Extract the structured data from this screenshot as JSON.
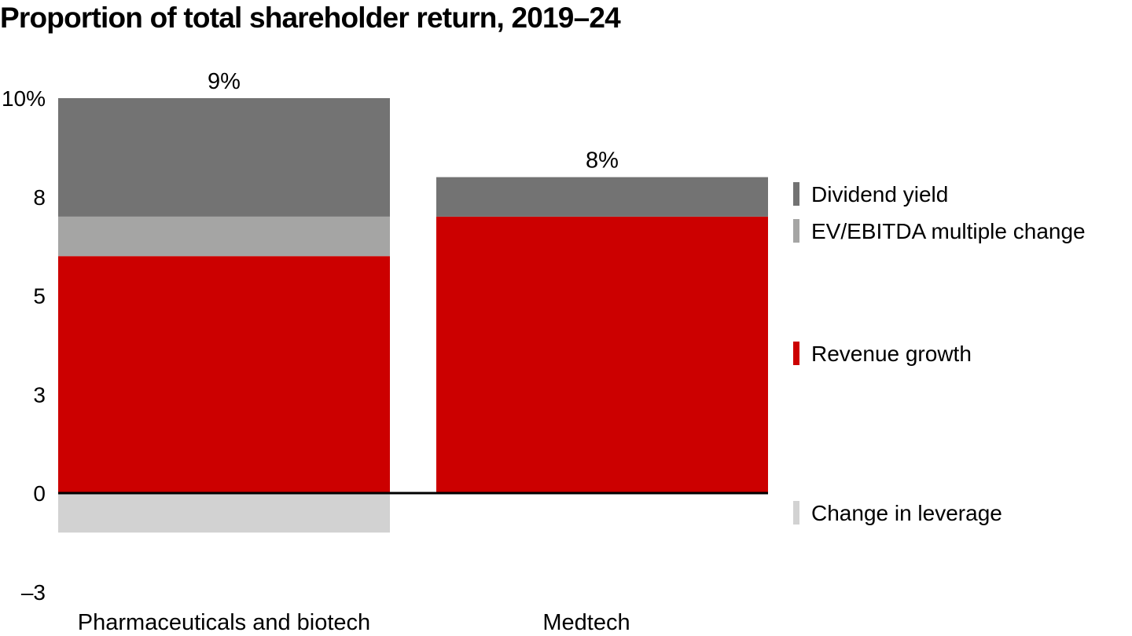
{
  "chart_data": {
    "type": "bar",
    "stacked": true,
    "title": "Proportion of total shareholder return, 2019–24",
    "xlabel": "",
    "ylabel": "",
    "ylim": [
      -3,
      10
    ],
    "y_ticks": [
      {
        "value": 10,
        "label": "10%"
      },
      {
        "value": 7.5,
        "label": "8"
      },
      {
        "value": 5,
        "label": "5"
      },
      {
        "value": 2.5,
        "label": "3"
      },
      {
        "value": 0,
        "label": "0"
      },
      {
        "value": -2.5,
        "label": "–3"
      }
    ],
    "grid": false,
    "categories": [
      "Pharmaceuticals and biotech",
      "Medtech"
    ],
    "totals": [
      "9%",
      "8%"
    ],
    "series": [
      {
        "name": "Change in leverage",
        "color": "#d2d2d2",
        "values": [
          -1.0,
          0
        ]
      },
      {
        "name": "Revenue growth",
        "color": "#cc0000",
        "values": [
          6.0,
          7.0
        ]
      },
      {
        "name": "EV/EBITDA multiple change",
        "color": "#a5a5a4",
        "values": [
          1.0,
          0
        ]
      },
      {
        "name": "Dividend yield",
        "color": "#737373",
        "values": [
          3.0,
          1.0
        ]
      }
    ],
    "legend": {
      "placement": "right",
      "order": [
        "Dividend yield",
        "EV/EBITDA multiple change",
        "Revenue growth",
        "Change in leverage"
      ]
    }
  }
}
